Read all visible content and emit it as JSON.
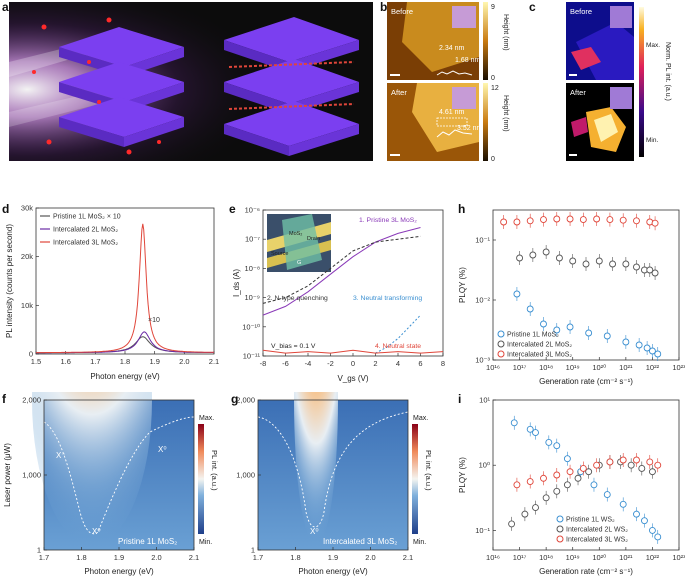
{
  "labels": {
    "a": "a",
    "b": "b",
    "c": "c",
    "d": "d",
    "e": "e",
    "f": "f",
    "g": "g",
    "h": "h",
    "i": "i"
  },
  "panel_b": {
    "before": "Before",
    "after": "After",
    "h1": "2.34 nm",
    "h2": "1.68 nm",
    "h3": "4.61 nm",
    "h4": "3.52 nm",
    "cbar_top_max": "9",
    "cbar_top_min": "0",
    "cbar_bot_max": "12",
    "cbar_bot_min": "0",
    "cbar_label": "Height (nm)"
  },
  "panel_c": {
    "before": "Before",
    "after": "After",
    "max": "Max.",
    "min": "Min.",
    "cbar_label": "Norm. PL int. (a.u.)"
  },
  "panel_d": {
    "ylabel": "PL intensity (counts per second)",
    "xlabel": "Photon energy (eV)",
    "yticks": [
      "0",
      "10k",
      "20k",
      "30k"
    ],
    "xticks": [
      "1.5",
      "1.6",
      "1.7",
      "1.8",
      "1.9",
      "2.0",
      "2.1"
    ],
    "annotation": "×10",
    "legend": [
      {
        "label": "Pristine 1L MoS₂ × 10",
        "color": "#555555"
      },
      {
        "label": "Intercalated 2L MoS₂",
        "color": "#6a2aa5"
      },
      {
        "label": "Intercalated 3L MoS₂",
        "color": "#e0463a"
      }
    ]
  },
  "panel_e": {
    "ylabel": "I_ds (A)",
    "xlabel": "V_gs (V)",
    "yticks": [
      "10⁻¹¹",
      "10⁻¹⁰",
      "10⁻⁹",
      "10⁻⁸",
      "10⁻⁷",
      "10⁻⁶"
    ],
    "xticks": [
      "-8",
      "-6",
      "-4",
      "-2",
      "0",
      "2",
      "4",
      "6",
      "8"
    ],
    "a1": "1. Pristine 3L MoS₂",
    "a2": "2. N-type quenching",
    "a3": "3. Neutral transforming",
    "a4": "4. Neutral state",
    "vbias": "V_bias = 0.1 V",
    "inset": {
      "mos2": "MoS₂",
      "source": "Source",
      "drain": "Drain",
      "gate": "G"
    }
  },
  "panel_f": {
    "ylabel": "Laser power (μW)",
    "xlabel": "Photon energy (eV)",
    "yticks": [
      "1",
      "1,000",
      "2,000"
    ],
    "xticks": [
      "1.7",
      "1.8",
      "1.9",
      "2.0",
      "2.1"
    ],
    "x_minus": "X⁻",
    "x0": "X⁰",
    "x0b": "X⁰",
    "caption": "Pristine 1L MoS₂",
    "cbar": {
      "max": "Max.",
      "min": "Min.",
      "label": "PL int. (a.u.)"
    }
  },
  "panel_g": {
    "xlabel": "Photon energy (eV)",
    "yticks": [
      "1",
      "1,000",
      "2,000"
    ],
    "xticks": [
      "1.7",
      "1.8",
      "1.9",
      "2.0",
      "2.1"
    ],
    "x0": "X⁰",
    "caption": "Intercalated 3L MoS₂",
    "cbar": {
      "max": "Max.",
      "min": "Min.",
      "label": "PL int. (a.u.)"
    }
  },
  "panel_h": {
    "ylabel": "PLQY (%)",
    "xlabel": "Generation rate (cm⁻² s⁻¹)",
    "yticks": [
      "10⁻³",
      "10⁻²",
      "10⁻¹"
    ],
    "xticks": [
      "10¹⁶",
      "10¹⁷",
      "10¹⁸",
      "10¹⁹",
      "10²⁰",
      "10²¹",
      "10²²",
      "10²³"
    ],
    "legend": [
      {
        "label": "Pristine 1L MoS₂",
        "color": "#3a8fd1"
      },
      {
        "label": "Intercalated 2L MoS₂",
        "color": "#555555"
      },
      {
        "label": "Intercalated 3L MoS₂",
        "color": "#e0463a"
      }
    ]
  },
  "panel_i": {
    "ylabel": "PLQY (%)",
    "xlabel": "Generation rate (cm⁻² s⁻¹)",
    "yticks": [
      "10⁻¹",
      "10⁰",
      "10¹"
    ],
    "xticks": [
      "10¹⁶",
      "10¹⁷",
      "10¹⁸",
      "10¹⁹",
      "10²⁰",
      "10²¹",
      "10²²",
      "10²³"
    ],
    "legend": [
      {
        "label": "Pristine 1L WS₂",
        "color": "#3a8fd1"
      },
      {
        "label": "Intercalated 2L WS₂",
        "color": "#555555"
      },
      {
        "label": "Intercalated 3L WS₂",
        "color": "#e0463a"
      }
    ]
  },
  "chart_data": [
    {
      "type": "line",
      "panel": "d",
      "xlim": [
        1.5,
        2.1
      ],
      "ylim": [
        0,
        30000
      ],
      "series": [
        {
          "name": "Pristine 1L MoS₂ × 10",
          "peak_x": 1.86,
          "peak_y": 3300,
          "fwhm": 0.06
        },
        {
          "name": "Intercalated 2L MoS₂",
          "peak_x": 1.865,
          "peak_y": 4300,
          "fwhm": 0.05
        },
        {
          "name": "Intercalated 3L MoS₂",
          "peak_x": 1.86,
          "peak_y": 26500,
          "fwhm": 0.028
        }
      ]
    },
    {
      "type": "line",
      "panel": "e",
      "xlim": [
        -8,
        8
      ],
      "ylim_log10": [
        -11,
        -6
      ],
      "series": [
        {
          "name": "1. Pristine 3L MoS₂",
          "x": [
            -8,
            -6,
            -4,
            -2,
            0,
            2,
            4,
            6
          ],
          "log10_y": [
            -9.6,
            -9.3,
            -8.8,
            -8.2,
            -7.6,
            -7.1,
            -6.8,
            -6.6
          ]
        },
        {
          "name": "2. N-type quenching",
          "x": [
            -8,
            -6,
            -4,
            -2,
            0,
            2,
            4,
            6
          ],
          "log10_y": [
            -9.2,
            -9.0,
            -8.6,
            -8.0,
            -7.4,
            -7.1,
            -7.0,
            -6.9
          ]
        },
        {
          "name": "3. Neutral transforming",
          "x": [
            2,
            3,
            4,
            5,
            6
          ],
          "log10_y": [
            -10.9,
            -10.7,
            -10.4,
            -10.0,
            -9.6
          ]
        },
        {
          "name": "4. Neutral state",
          "x": [
            -8,
            -6,
            -4,
            -2,
            0,
            2,
            4,
            6,
            8
          ],
          "log10_y": [
            -10.8,
            -10.9,
            -10.85,
            -10.9,
            -10.8,
            -10.9,
            -10.85,
            -10.9,
            -10.85
          ]
        }
      ]
    },
    {
      "type": "scatter",
      "panel": "h",
      "x_log10_range": [
        16,
        23
      ],
      "y_log10_range": [
        -3,
        -0.5
      ],
      "series": [
        {
          "name": "Pristine 1L MoS₂",
          "log10_x": [
            16.9,
            17.4,
            17.9,
            18.4,
            18.9,
            19.6,
            20.3,
            21.0,
            21.5,
            21.8,
            22.0,
            22.2
          ],
          "log10_y": [
            -1.9,
            -2.15,
            -2.4,
            -2.5,
            -2.45,
            -2.55,
            -2.6,
            -2.7,
            -2.75,
            -2.8,
            -2.85,
            -2.9
          ]
        },
        {
          "name": "Intercalated 2L MoS₂",
          "log10_x": [
            17.0,
            17.5,
            18.0,
            18.5,
            19.0,
            19.5,
            20.0,
            20.5,
            21.0,
            21.4,
            21.7,
            21.9,
            22.1
          ],
          "log10_y": [
            -1.3,
            -1.25,
            -1.2,
            -1.3,
            -1.35,
            -1.4,
            -1.35,
            -1.4,
            -1.4,
            -1.45,
            -1.5,
            -1.5,
            -1.55
          ]
        },
        {
          "name": "Intercalated 3L MoS₂",
          "log10_x": [
            16.4,
            16.9,
            17.4,
            17.9,
            18.4,
            18.9,
            19.4,
            19.9,
            20.4,
            20.9,
            21.4,
            21.9,
            22.1
          ],
          "log10_y": [
            -0.7,
            -0.7,
            -0.68,
            -0.66,
            -0.65,
            -0.65,
            -0.66,
            -0.65,
            -0.66,
            -0.67,
            -0.68,
            -0.7,
            -0.72
          ]
        }
      ]
    },
    {
      "type": "scatter",
      "panel": "i",
      "x_log10_range": [
        16,
        23
      ],
      "y_log10_range": [
        -1.3,
        1.0
      ],
      "series": [
        {
          "name": "Pristine 1L WS₂",
          "log10_x": [
            16.8,
            17.4,
            17.6,
            18.1,
            18.4,
            18.8,
            19.3,
            19.8,
            20.3,
            20.9,
            21.4,
            21.7,
            22.0,
            22.2
          ],
          "log10_y": [
            0.65,
            0.55,
            0.5,
            0.35,
            0.3,
            0.1,
            -0.1,
            -0.3,
            -0.45,
            -0.6,
            -0.75,
            -0.85,
            -1.0,
            -1.1
          ]
        },
        {
          "name": "Intercalated 2L WS₂",
          "log10_x": [
            16.7,
            17.2,
            17.6,
            18.0,
            18.4,
            18.8,
            19.2,
            19.6,
            20.0,
            20.4,
            20.8,
            21.2,
            21.6,
            22.0
          ],
          "log10_y": [
            -0.9,
            -0.75,
            -0.65,
            -0.5,
            -0.4,
            -0.3,
            -0.2,
            -0.1,
            0.0,
            0.05,
            0.05,
            0.0,
            -0.05,
            -0.1
          ]
        },
        {
          "name": "Intercalated 3L WS₂",
          "log10_x": [
            16.9,
            17.4,
            17.9,
            18.4,
            18.9,
            19.4,
            19.9,
            20.4,
            20.9,
            21.4,
            21.9,
            22.2
          ],
          "log10_y": [
            -0.3,
            -0.25,
            -0.2,
            -0.15,
            -0.1,
            -0.05,
            0.0,
            0.05,
            0.08,
            0.08,
            0.05,
            0.0
          ]
        }
      ]
    }
  ]
}
